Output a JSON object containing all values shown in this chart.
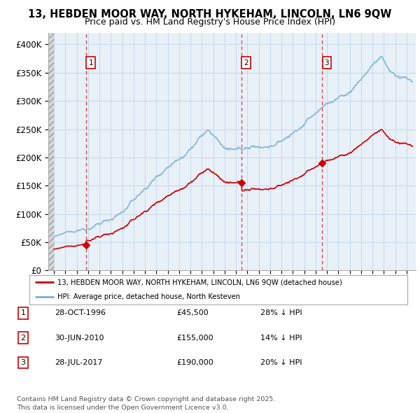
{
  "title1": "13, HEBDEN MOOR WAY, NORTH HYKEHAM, LINCOLN, LN6 9QW",
  "title2": "Price paid vs. HM Land Registry's House Price Index (HPI)",
  "ylim": [
    0,
    420000
  ],
  "yticks": [
    0,
    50000,
    100000,
    150000,
    200000,
    250000,
    300000,
    350000,
    400000
  ],
  "ytick_labels": [
    "£0",
    "£50K",
    "£100K",
    "£150K",
    "£200K",
    "£250K",
    "£300K",
    "£350K",
    "£400K"
  ],
  "xlim_start": 1993.5,
  "xlim_end": 2025.8,
  "purchases": [
    {
      "date_num": 1996.83,
      "price": 45500,
      "label": "1"
    },
    {
      "date_num": 2010.5,
      "price": 155000,
      "label": "2"
    },
    {
      "date_num": 2017.58,
      "price": 190000,
      "label": "3"
    }
  ],
  "purchase_color": "#cc0000",
  "hpi_color": "#7bafd4",
  "vline_color": "#cc0000",
  "grid_color": "#c8d8e8",
  "bg_color": "#e8f0f8",
  "legend_items": [
    "13, HEBDEN MOOR WAY, NORTH HYKEHAM, LINCOLN, LN6 9QW (detached house)",
    "HPI: Average price, detached house, North Kesteven"
  ],
  "table_rows": [
    {
      "num": "1",
      "date": "28-OCT-1996",
      "price": "£45,500",
      "pct": "28% ↓ HPI"
    },
    {
      "num": "2",
      "date": "30-JUN-2010",
      "price": "£155,000",
      "pct": "14% ↓ HPI"
    },
    {
      "num": "3",
      "date": "28-JUL-2017",
      "price": "£190,000",
      "pct": "20% ↓ HPI"
    }
  ],
  "footnote": "Contains HM Land Registry data © Crown copyright and database right 2025.\nThis data is licensed under the Open Government Licence v3.0.",
  "title_fontsize": 10.5,
  "subtitle_fontsize": 9,
  "axis_fontsize": 8.5
}
